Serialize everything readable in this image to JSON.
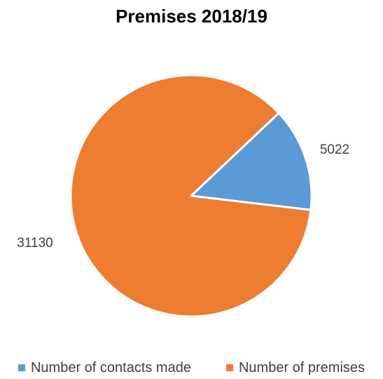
{
  "chart_data": {
    "type": "pie",
    "title": "Premises 2018/19",
    "slices": [
      {
        "label": "Number of contacts made",
        "value": 5022,
        "color": "#5B9BD5"
      },
      {
        "label": "Number of premises",
        "value": 31130,
        "color": "#ED7D31"
      }
    ],
    "data_labels": [
      "5022",
      "31130"
    ],
    "legend_position": "bottom"
  }
}
